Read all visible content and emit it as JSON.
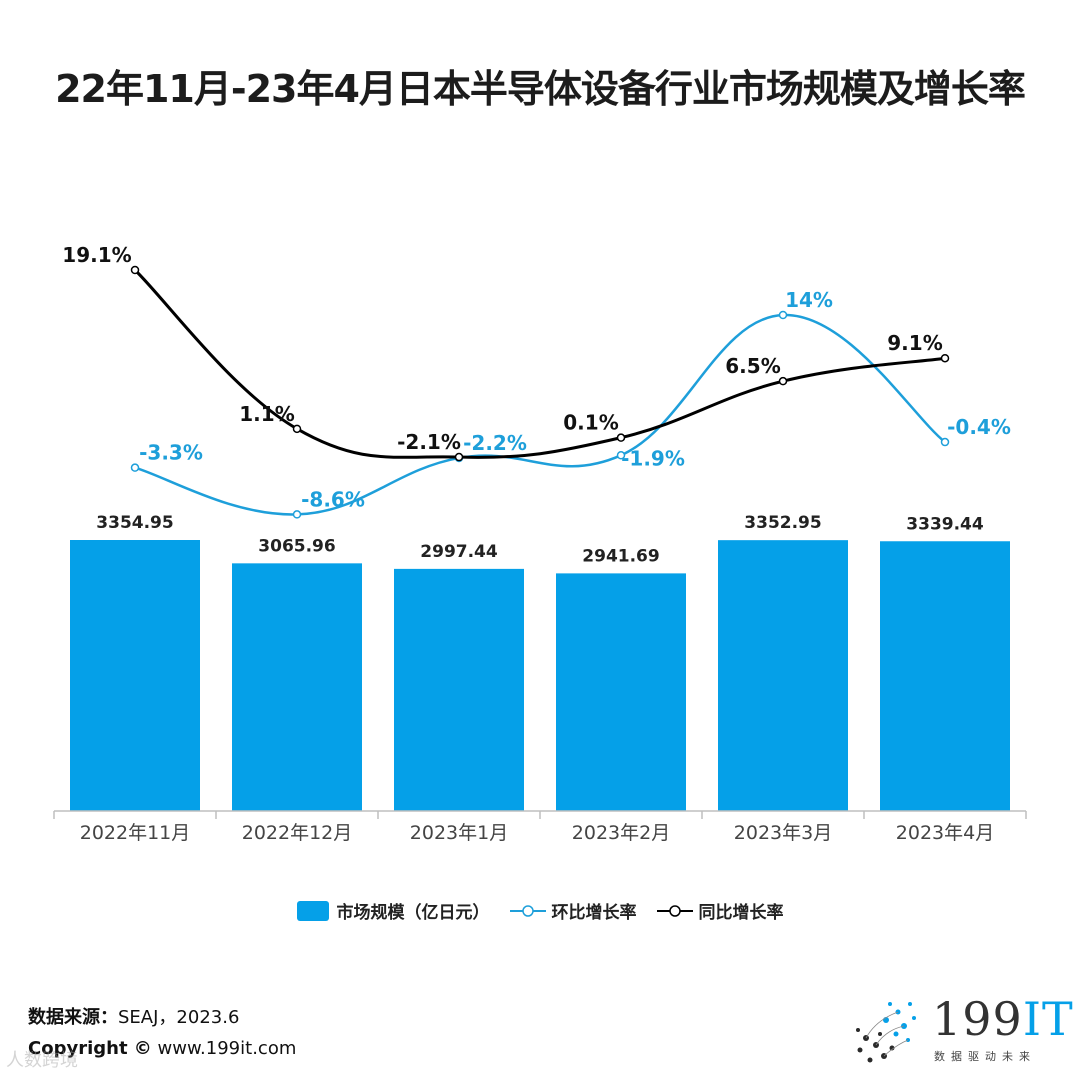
{
  "title": "22年11月-23年4月日本半导体设备行业市场规模及增长率",
  "chart_data": {
    "type": "bar",
    "categories": [
      "2022年11月",
      "2022年12月",
      "2023年1月",
      "2023年2月",
      "2023年3月",
      "2023年4月"
    ],
    "series": [
      {
        "name": "市场规模（亿日元）",
        "type": "bar",
        "values": [
          3354.95,
          3065.96,
          2997.44,
          2941.69,
          3352.95,
          3339.44
        ],
        "labels": [
          "3354.95",
          "3065.96",
          "2997.44",
          "2941.69",
          "3352.95",
          "3339.44"
        ],
        "color": "#05A0E8"
      },
      {
        "name": "环比增长率",
        "type": "line",
        "values": [
          -3.3,
          -8.6,
          -2.2,
          -1.9,
          14,
          -0.4
        ],
        "labels": [
          "-3.3%",
          "-8.6%",
          "-2.2%",
          "-1.9%",
          "14%",
          "-0.4%"
        ],
        "color": "#1E9FDA"
      },
      {
        "name": "同比增长率",
        "type": "line",
        "values": [
          19.1,
          1.1,
          -2.1,
          0.1,
          6.5,
          9.1
        ],
        "labels": [
          "19.1%",
          "1.1%",
          "-2.1%",
          "0.1%",
          "6.5%",
          "9.1%"
        ],
        "color": "#000000"
      }
    ],
    "legend_position": "bottom",
    "grid": false
  },
  "source": {
    "label": "数据来源：",
    "value": "SEAJ，2023.6"
  },
  "copyright": {
    "label": "Copyright ©",
    "value": "www.199it.com"
  },
  "logo": {
    "brand_num": "199",
    "brand_it": "IT",
    "subtitle": "数据驱动未来"
  },
  "watermark": "人数跨境"
}
